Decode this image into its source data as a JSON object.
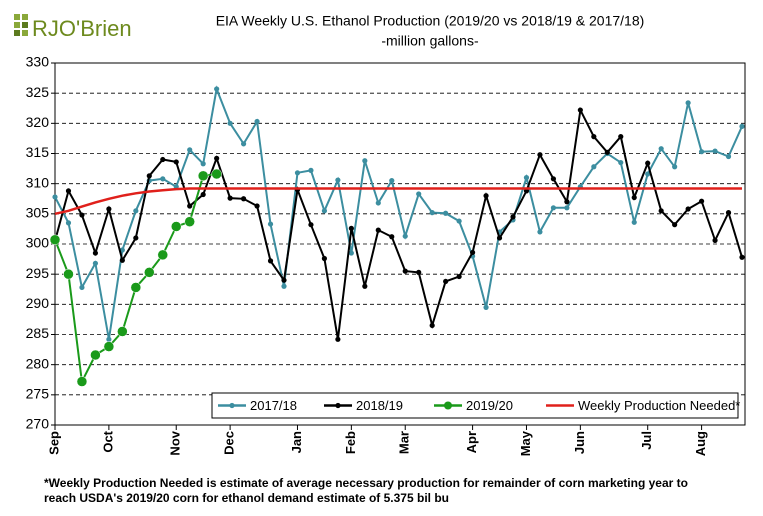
{
  "chart_data": {
    "type": "line",
    "logo": "RJO'Brien",
    "title": "EIA Weekly U.S. Ethanol Production (2019/20 vs 2018/19 & 2017/18)",
    "subtitle": "-million  gallons-",
    "footnote": [
      "*Weekly Production Needed is estimate of average necessary production for remainder of corn marketing year to",
      "reach USDA's 2019/20 corn for ethanol demand estimate of 5.375 bil bu"
    ],
    "categories": [
      "Sep",
      null,
      null,
      null,
      "Oct",
      null,
      null,
      null,
      null,
      "Nov",
      null,
      null,
      null,
      "Dec",
      null,
      null,
      null,
      null,
      "Jan",
      null,
      null,
      null,
      "Feb",
      null,
      null,
      null,
      "Mar",
      null,
      null,
      null,
      null,
      "Apr",
      null,
      null,
      null,
      "May",
      null,
      null,
      null,
      "Jun",
      null,
      null,
      null,
      null,
      "Jul",
      null,
      null,
      null,
      "Aug",
      null,
      null,
      null
    ],
    "ylim": [
      270,
      330
    ],
    "yticks": [
      270,
      275,
      280,
      285,
      290,
      295,
      300,
      305,
      310,
      315,
      320,
      325,
      330
    ],
    "grid": true,
    "legend": "bottom-right",
    "series": [
      {
        "name": "2017/18",
        "color": "#3c8ea0",
        "marker": "small",
        "values": [
          307.8,
          303.5,
          292.8,
          296.8,
          284.2,
          299,
          305.5,
          310.5,
          310.8,
          309.5,
          315.6,
          313.3,
          325.7,
          320,
          316.6,
          320.3,
          303.3,
          293,
          311.8,
          312.2,
          305.5,
          310.6,
          298.5,
          313.8,
          306.8,
          310.5,
          301.3,
          308.3,
          305.2,
          305.1,
          303.8,
          298,
          289.5,
          302,
          304,
          311,
          302,
          306,
          306,
          309.5,
          312.8,
          315,
          313.5,
          303.6,
          311.6,
          315.8,
          312.8,
          323.4,
          315.3,
          315.4,
          314.5,
          319.5
        ]
      },
      {
        "name": "2018/19",
        "color": "#000000",
        "marker": "small",
        "values": [
          300.5,
          308.8,
          304.8,
          298.5,
          305.8,
          297.3,
          301,
          311.3,
          314,
          313.6,
          306.3,
          308.2,
          314.2,
          307.6,
          307.5,
          306.3,
          297.2,
          294,
          309,
          303.2,
          297.6,
          284.2,
          302.6,
          293,
          302.3,
          301.2,
          295.5,
          295.3,
          286.5,
          293.8,
          294.6,
          298.6,
          308,
          301,
          304.5,
          308.8,
          314.8,
          310.8,
          307,
          322.2,
          317.8,
          315.2,
          317.8,
          307.7,
          313.4,
          305.5,
          303.2,
          305.8,
          307.1,
          300.6,
          305.2,
          297.8
        ]
      },
      {
        "name": "2019/20",
        "color": "#1a9a1a",
        "marker": "large",
        "values": [
          300.7,
          295,
          277.2,
          281.6,
          283,
          285.5,
          292.8,
          295.3,
          298.2,
          302.9,
          303.7,
          311.3,
          311.6,
          null,
          null,
          null,
          null,
          null,
          null,
          null,
          null,
          null,
          null,
          null,
          null,
          null,
          null,
          null,
          null,
          null,
          null,
          null,
          null,
          null,
          null,
          null,
          null,
          null,
          null,
          null,
          null,
          null,
          null,
          null,
          null,
          null,
          null,
          null,
          null,
          null,
          null,
          null
        ]
      },
      {
        "name": "Weekly Production Needed*",
        "color": "#e0201b",
        "marker": "none",
        "values": [
          305,
          305.5,
          306.2,
          306.9,
          307.5,
          308,
          308.4,
          308.7,
          308.9,
          309.1,
          309.2,
          309.2,
          309.2,
          309.2,
          309.2,
          309.2,
          309.2,
          309.2,
          309.2,
          309.2,
          309.2,
          309.2,
          309.2,
          309.2,
          309.2,
          309.2,
          309.2,
          309.2,
          309.2,
          309.2,
          309.2,
          309.2,
          309.2,
          309.2,
          309.2,
          309.2,
          309.2,
          309.2,
          309.2,
          309.2,
          309.2,
          309.2,
          309.2,
          309.2,
          309.2,
          309.2,
          309.2,
          309.2,
          309.2,
          309.2,
          309.2,
          309.2
        ]
      }
    ]
  }
}
